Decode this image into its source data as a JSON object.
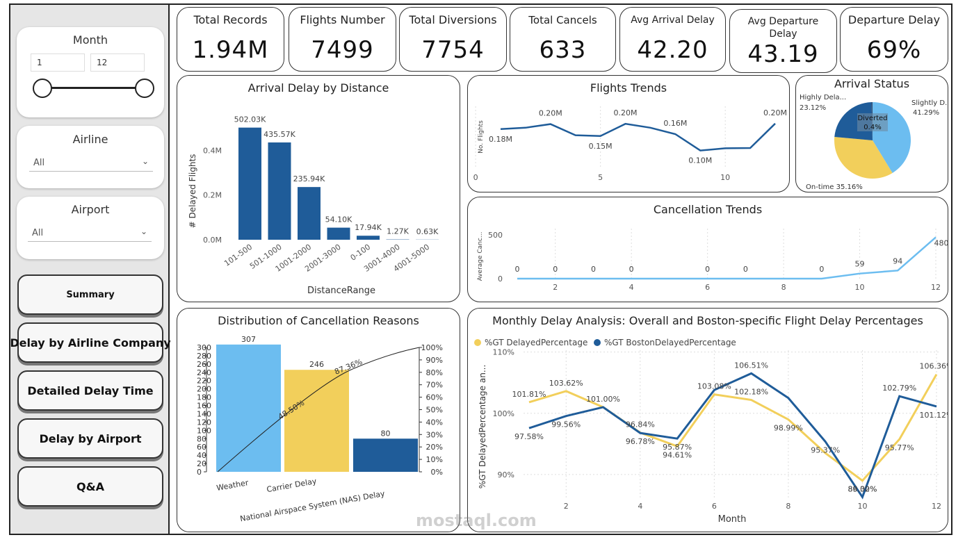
{
  "slicers": {
    "month": {
      "title": "Month",
      "from": "1",
      "to": "12"
    },
    "airline": {
      "title": "Airline",
      "value": "All"
    },
    "airport": {
      "title": "Airport",
      "value": "All"
    }
  },
  "nav": [
    "Summary",
    "Delay by Airline Company",
    "Detailed Delay Time",
    "Delay by Airport",
    "Q&A"
  ],
  "kpis": [
    {
      "label": "Total Records",
      "value": "1.94M"
    },
    {
      "label": "Flights Number",
      "value": "7499"
    },
    {
      "label": "Total Diversions",
      "value": "7754"
    },
    {
      "label": "Total Cancels",
      "value": "633"
    },
    {
      "label": "Avg Arrival Delay",
      "value": "42.20"
    },
    {
      "label": "Avg Departure Delay",
      "value": "43.19"
    },
    {
      "label": "Departure Delay",
      "value": "69%"
    }
  ],
  "panels": {
    "distance": "Arrival Delay by Distance",
    "flights": "Flights Trends",
    "status": "Arrival Status",
    "cancel": "Cancellation Trends",
    "reasons": "Distribution of Cancellation Reasons",
    "monthly": "Monthly Delay Analysis: Overall and Boston-specific Flight Delay Percentages"
  },
  "watermark": "mostaql.com",
  "colors": {
    "dark": "#1f5c99",
    "light": "#6cbdf0",
    "yellow": "#f2cf5b",
    "cancel_line": "#6cbdf0"
  },
  "chart_data": [
    {
      "type": "bar",
      "title": "Arrival Delay by Distance",
      "xlabel": "DistanceRange",
      "ylabel": "# Delayed Flights",
      "categories": [
        "101-500",
        "501-1000",
        "1001-2000",
        "2001-3000",
        "0-100",
        "3001-4000",
        "4001-5000"
      ],
      "values": [
        502030,
        435570,
        235940,
        54100,
        17940,
        1270,
        630
      ],
      "labels": [
        "502.03K",
        "435.57K",
        "235.94K",
        "54.10K",
        "17.94K",
        "1.27K",
        "0.63K"
      ],
      "yticks": [
        "0.0M",
        "0.2M",
        "0.4M"
      ],
      "ylim": [
        0,
        560000
      ]
    },
    {
      "type": "line",
      "title": "Flights Trends",
      "ylabel": "No. Flights",
      "x": [
        1,
        2,
        3,
        4,
        5,
        6,
        7,
        8,
        9,
        10,
        11,
        12
      ],
      "values": [
        0.178,
        0.183,
        0.196,
        0.156,
        0.153,
        0.197,
        0.183,
        0.16,
        0.101,
        0.109,
        0.11,
        0.198
      ],
      "labels": [
        {
          "i": 0,
          "t": "0.18M"
        },
        {
          "i": 2,
          "t": "0.20M"
        },
        {
          "i": 4,
          "t": "0.15M"
        },
        {
          "i": 5,
          "t": "0.20M"
        },
        {
          "i": 7,
          "t": "0.16M"
        },
        {
          "i": 8,
          "t": "0.10M"
        },
        {
          "i": 11,
          "t": "0.20M"
        }
      ],
      "xticks": [
        "0",
        "5",
        "10"
      ],
      "ylim": [
        0.05,
        0.23
      ]
    },
    {
      "type": "pie",
      "title": "Arrival Status",
      "slices": [
        {
          "name": "Slightly D...",
          "pct": 41.29,
          "color": "#6cbdf0",
          "label": "Slightly D... 41.29%"
        },
        {
          "name": "On-time",
          "pct": 35.16,
          "color": "#f2cf5b",
          "label": "On-time 35.16%"
        },
        {
          "name": "Highly Dela...",
          "pct": 23.12,
          "color": "#1f5c99",
          "label": "Highly Dela... 23.12%"
        },
        {
          "name": "Diverted",
          "pct": 0.4,
          "color": "#1f3f66",
          "label": "Diverted 0.4%"
        }
      ]
    },
    {
      "type": "line",
      "title": "Cancellation Trends",
      "ylabel": "Average Canc...",
      "x": [
        1,
        2,
        3,
        4,
        5,
        6,
        7,
        8,
        9,
        10,
        11,
        12
      ],
      "values": [
        0,
        0,
        0,
        0,
        0,
        0,
        0,
        0,
        0,
        59,
        94,
        480
      ],
      "labels": [
        "0",
        "0",
        "0",
        "0",
        "",
        "0",
        "0",
        "",
        "0",
        "59",
        "94",
        "480"
      ],
      "xticks": [
        "2",
        "4",
        "6",
        "8",
        "10",
        "12"
      ],
      "yticks": [
        "0",
        "500"
      ],
      "ylim": [
        0,
        500
      ]
    },
    {
      "type": "bar",
      "title": "Distribution of Cancellation Reasons",
      "categories": [
        "Weather",
        "Carrier Delay",
        "National Airspace System (NAS) Delay"
      ],
      "values": [
        307,
        246,
        80
      ],
      "colors": [
        "#6cbdf0",
        "#f2cf5b",
        "#1f5c99"
      ],
      "cumulative": [
        "48.50%",
        "87.36%"
      ],
      "yticks": [
        "0",
        "20",
        "40",
        "60",
        "80",
        "100",
        "120",
        "140",
        "160",
        "180",
        "200",
        "220",
        "240",
        "260",
        "280",
        "300"
      ],
      "y2ticks": [
        "0%",
        "10%",
        "20%",
        "30%",
        "40%",
        "50%",
        "60%",
        "70%",
        "80%",
        "90%",
        "100%"
      ],
      "ylim": [
        0,
        300
      ]
    },
    {
      "type": "line",
      "title": "Monthly Delay Analysis: Overall and Boston-specific Flight Delay Percentages",
      "xlabel": "Month",
      "ylabel": "%GT DelayedPercentage an...",
      "x": [
        1,
        2,
        3,
        4,
        5,
        6,
        7,
        8,
        9,
        10,
        11,
        12
      ],
      "series": [
        {
          "name": "%GT DelayedPercentage",
          "color": "#f2cf5b",
          "values": [
            101.81,
            103.62,
            101.0,
            96.84,
            94.61,
            103.08,
            102.18,
            98.99,
            93.5,
            89.0,
            95.77,
            106.36
          ]
        },
        {
          "name": "%GT BostonDelayedPercentage",
          "color": "#1f5c99",
          "values": [
            97.58,
            99.56,
            101.0,
            96.78,
            95.87,
            103.8,
            106.51,
            102.5,
            95.37,
            86.32,
            102.79,
            101.12
          ]
        }
      ],
      "labels": [
        {
          "x": 1,
          "y": 101.81,
          "t": "101.81%"
        },
        {
          "x": 2,
          "y": 103.62,
          "t": "103.62%"
        },
        {
          "x": 3,
          "y": 101.0,
          "t": "101.00%"
        },
        {
          "x": 4,
          "y": 96.84,
          "t": "96.84%"
        },
        {
          "x": 5,
          "y": 94.61,
          "t": "94.61%"
        },
        {
          "x": 6,
          "y": 103.08,
          "t": "103.08%"
        },
        {
          "x": 7,
          "y": 102.18,
          "t": "102.18%"
        },
        {
          "x": 8,
          "y": 98.99,
          "t": "98.99%"
        },
        {
          "x": 10,
          "y": 89.0,
          "t": "89.00%"
        },
        {
          "x": 11,
          "y": 95.77,
          "t": "95.77%"
        },
        {
          "x": 12,
          "y": 106.36,
          "t": "106.36%"
        },
        {
          "x": 1,
          "y": 97.58,
          "t": "97.58%"
        },
        {
          "x": 2,
          "y": 99.56,
          "t": "99.56%"
        },
        {
          "x": 4,
          "y": 96.78,
          "t": "96.78%"
        },
        {
          "x": 5,
          "y": 95.87,
          "t": "95.87%"
        },
        {
          "x": 7,
          "y": 106.51,
          "t": "106.51%"
        },
        {
          "x": 9,
          "y": 95.37,
          "t": "95.37%"
        },
        {
          "x": 10,
          "y": 86.32,
          "t": "86.32%"
        },
        {
          "x": 11,
          "y": 102.79,
          "t": "102.79%"
        },
        {
          "x": 12,
          "y": 101.12,
          "t": "101.12%"
        }
      ],
      "yticks": [
        "90%",
        "100%",
        "110%"
      ],
      "xticks": [
        "2",
        "4",
        "6",
        "8",
        "10",
        "12"
      ],
      "ylim": [
        85,
        112
      ]
    }
  ]
}
